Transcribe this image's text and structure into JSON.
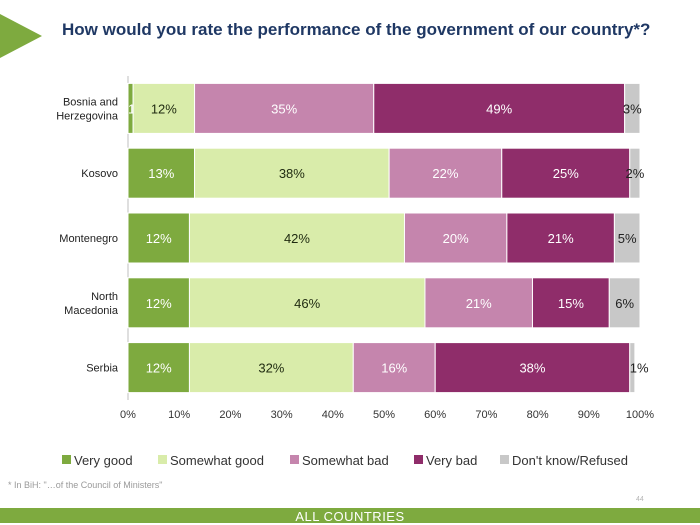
{
  "title": "How would you rate the performance of the government of our country*?",
  "footnote": "* In BiH: \"…of the Council of Ministers\"",
  "page_number": "44",
  "footer_label": "ALL COUNTRIES",
  "chart_data": {
    "type": "bar",
    "orientation": "horizontal",
    "stacked": true,
    "categories": [
      "Bosnia and Herzegovina",
      "Kosovo",
      "Montenegro",
      "North Macedonia",
      "Serbia"
    ],
    "series": [
      {
        "name": "Very good",
        "color": "#7eaa3f",
        "text_color": "#ffffff",
        "values": [
          1,
          13,
          12,
          12,
          12
        ],
        "labels": [
          "1%",
          "13%",
          "12%",
          "12%",
          "12%"
        ]
      },
      {
        "name": "Somewhat good",
        "color": "#d9ecaa",
        "text_color": "#1f2a10",
        "values": [
          12,
          38,
          42,
          46,
          32
        ],
        "labels": [
          "12%",
          "38%",
          "42%",
          "46%",
          "32%"
        ]
      },
      {
        "name": "Somewhat bad",
        "color": "#c585ad",
        "text_color": "#ffffff",
        "values": [
          35,
          22,
          20,
          21,
          16
        ],
        "labels": [
          "35%",
          "22%",
          "20%",
          "21%",
          "16%"
        ]
      },
      {
        "name": "Very bad",
        "color": "#8f2d6a",
        "text_color": "#ffffff",
        "values": [
          49,
          25,
          21,
          15,
          38
        ],
        "labels": [
          "49%",
          "25%",
          "21%",
          "15%",
          "38%"
        ]
      },
      {
        "name": "Don't know/Refused",
        "color": "#c8c8c8",
        "text_color": "#222222",
        "values": [
          3,
          2,
          5,
          6,
          1
        ],
        "labels": [
          "3%",
          "2%",
          "5%",
          "6%",
          "1%"
        ]
      }
    ],
    "xlim": [
      0,
      100
    ],
    "x_ticks": [
      "0%",
      "10%",
      "20%",
      "30%",
      "40%",
      "50%",
      "60%",
      "70%",
      "80%",
      "90%",
      "100%"
    ],
    "grid": true,
    "legend_position": "bottom"
  }
}
